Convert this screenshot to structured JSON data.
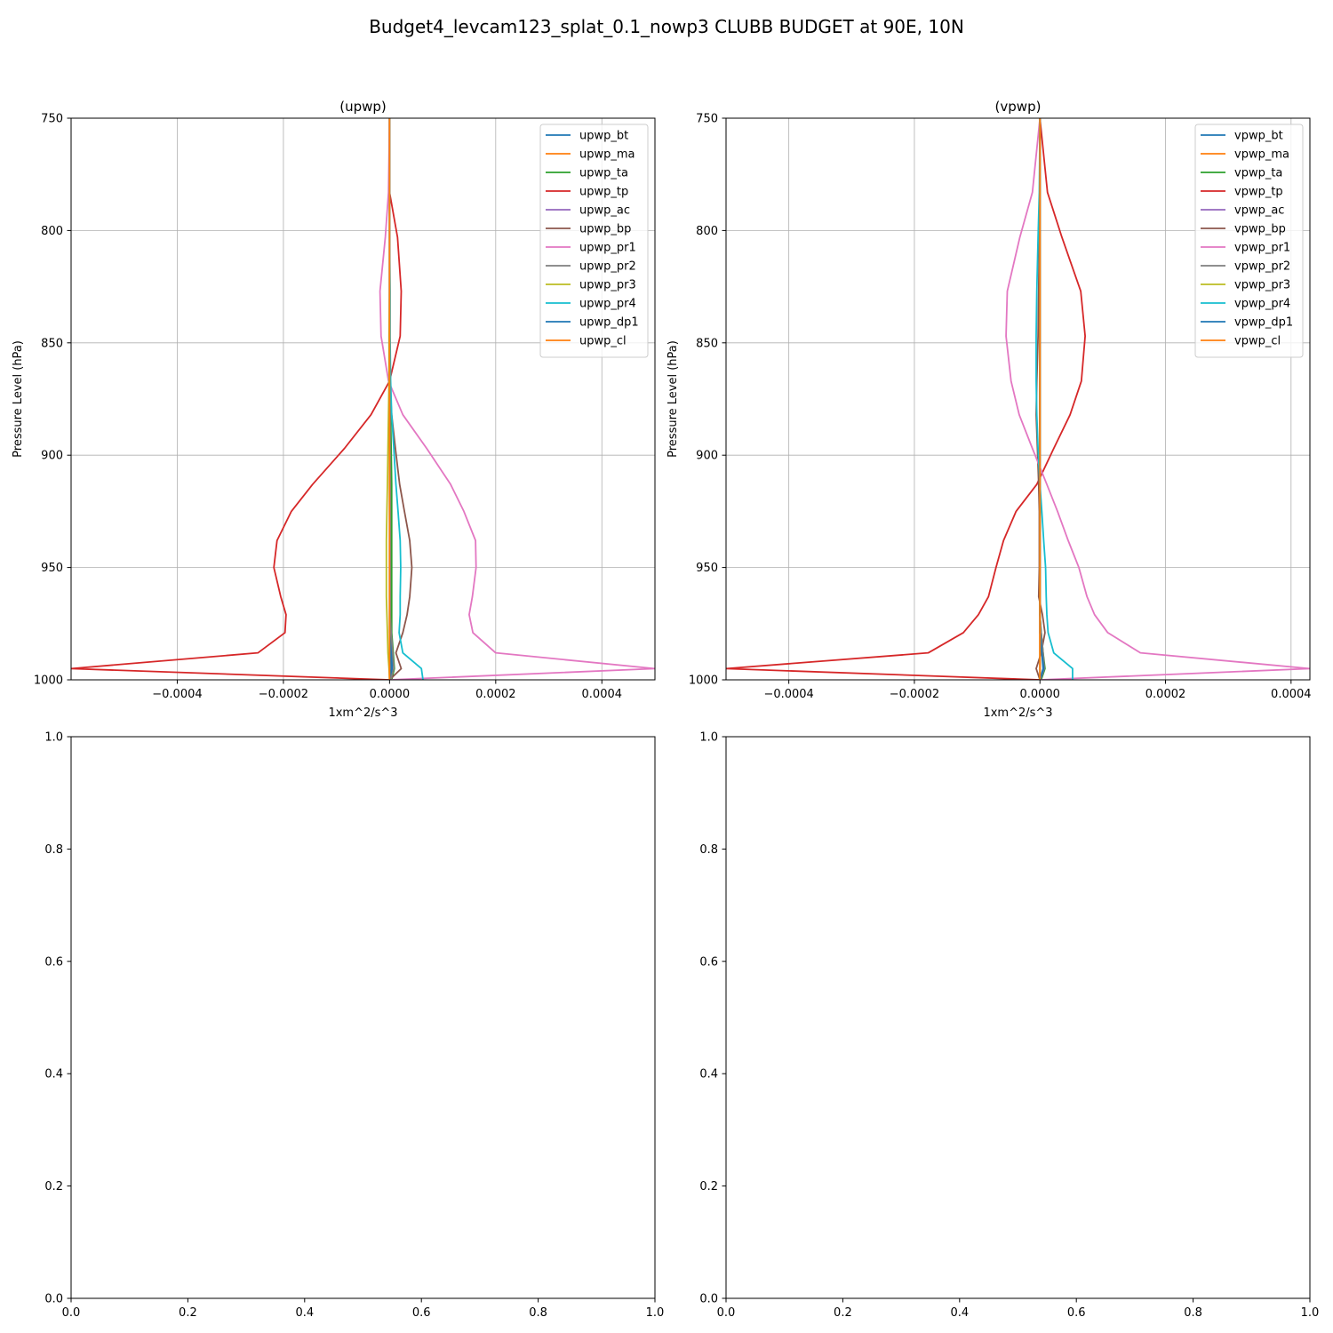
{
  "suptitle": "Budget4_levcam123_splat_0.1_nowp3 CLUBB BUDGET at 90E, 10N",
  "chart_data": [
    {
      "type": "line",
      "title": "(upwp)",
      "xlabel": "1xm^2/s^3",
      "ylabel": "Pressure Level (hPa)",
      "xlim": [
        -0.0006,
        0.0005
      ],
      "ylim": [
        1000,
        750
      ],
      "y_inverted": true,
      "grid": true,
      "legend": "upper right",
      "xticks": [
        -0.0004,
        -0.0002,
        0.0,
        0.0002,
        0.0004
      ],
      "xtick_labels": [
        "−0.0004",
        "−0.0002",
        "0.0000",
        "0.0002",
        "0.0004"
      ],
      "yticks": [
        750,
        800,
        850,
        900,
        950,
        1000
      ],
      "ytick_labels": [
        "750",
        "800",
        "850",
        "900",
        "950",
        "1000"
      ],
      "levels": [
        750,
        783,
        803,
        827,
        847,
        867,
        882,
        897,
        913,
        925,
        938,
        950,
        963,
        971,
        979,
        988,
        995,
        1000
      ],
      "series": [
        {
          "name": "upwp_bt",
          "color": "#1f77b4",
          "values": [
            0,
            0,
            0,
            0,
            0,
            0,
            1e-06,
            1e-06,
            1e-06,
            1e-06,
            1e-06,
            1e-06,
            1e-06,
            1e-06,
            2e-06,
            4e-06,
            5e-06,
            0
          ]
        },
        {
          "name": "upwp_ma",
          "color": "#ff7f0e",
          "values": [
            0,
            0,
            0,
            0,
            0,
            0,
            0,
            0,
            0,
            0,
            0,
            0,
            0,
            0,
            0,
            0,
            0,
            0
          ]
        },
        {
          "name": "upwp_ta",
          "color": "#2ca02c",
          "values": [
            0,
            0,
            0,
            0,
            0,
            0,
            2e-06,
            3e-06,
            4e-06,
            4e-06,
            4e-06,
            4e-06,
            4e-06,
            4e-06,
            4e-06,
            7e-06,
            9e-06,
            4e-06
          ]
        },
        {
          "name": "upwp_tp",
          "color": "#d62728",
          "values": [
            0,
            0,
            1.5e-05,
            2.2e-05,
            2e-05,
            0,
            -3.5e-05,
            -8.5e-05,
            -0.000145,
            -0.000185,
            -0.000212,
            -0.000218,
            -0.000205,
            -0.000195,
            -0.000197,
            -0.000248,
            -0.0006,
            0
          ]
        },
        {
          "name": "upwp_ac",
          "color": "#9467bd",
          "values": [
            0,
            0,
            0,
            0,
            0,
            0,
            0,
            0,
            0,
            0,
            0,
            0,
            0,
            0,
            0,
            0,
            0,
            0
          ]
        },
        {
          "name": "upwp_bp",
          "color": "#8c564b",
          "values": [
            0,
            0,
            0,
            0,
            0,
            0,
            4e-06,
            1.1e-05,
            1.9e-05,
            2.8e-05,
            3.8e-05,
            4.2e-05,
            3.8e-05,
            3.3e-05,
            2.5e-05,
            1.2e-05,
            2.2e-05,
            0
          ]
        },
        {
          "name": "upwp_pr1",
          "color": "#e377c2",
          "values": [
            0,
            -2e-06,
            -8e-06,
            -1.8e-05,
            -1.6e-05,
            -2e-06,
            2.5e-05,
            7e-05,
            0.000115,
            0.00014,
            0.000162,
            0.000163,
            0.000156,
            0.00015,
            0.000157,
            0.0002,
            0.0005,
            0
          ]
        },
        {
          "name": "upwp_pr2",
          "color": "#7f7f7f",
          "values": [
            0,
            0,
            0,
            0,
            0,
            0,
            1e-06,
            1e-06,
            1e-06,
            1e-06,
            1e-06,
            1e-06,
            1e-06,
            1e-06,
            3e-06,
            6e-06,
            8e-06,
            2e-06
          ]
        },
        {
          "name": "upwp_pr3",
          "color": "#bcbd22",
          "values": [
            0,
            0,
            0,
            0,
            -1e-06,
            -1e-06,
            -2e-06,
            -3e-06,
            -4e-06,
            -5e-06,
            -6e-06,
            -6e-06,
            -6e-06,
            -5e-06,
            -4e-06,
            -3e-06,
            -1e-06,
            0
          ]
        },
        {
          "name": "upwp_pr4",
          "color": "#17becf",
          "values": [
            0,
            0,
            0,
            1e-06,
            1e-06,
            2e-06,
            4e-06,
            8e-06,
            1.2e-05,
            1.6e-05,
            2e-05,
            2.1e-05,
            2e-05,
            2e-05,
            1.8e-05,
            2.5e-05,
            6e-05,
            6.3e-05
          ]
        },
        {
          "name": "upwp_dp1",
          "color": "#1f77b4",
          "values": [
            0,
            0,
            0,
            0,
            0,
            0,
            0,
            0,
            0,
            0,
            0,
            0,
            0,
            0,
            0,
            2e-06,
            3e-06,
            0
          ]
        },
        {
          "name": "upwp_cl",
          "color": "#ff7f0e",
          "values": [
            0,
            0,
            0,
            0,
            0,
            0,
            0,
            0,
            0,
            0,
            0,
            0,
            0,
            0,
            0,
            0,
            0,
            0
          ]
        }
      ]
    },
    {
      "type": "line",
      "title": "(vpwp)",
      "xlabel": "1xm^2/s^3",
      "ylabel": "Pressure Level (hPa)",
      "xlim": [
        -0.0005,
        0.00043
      ],
      "ylim": [
        1000,
        750
      ],
      "y_inverted": true,
      "grid": true,
      "legend": "upper right",
      "xticks": [
        -0.0004,
        -0.0002,
        0.0,
        0.0002,
        0.0004
      ],
      "xtick_labels": [
        "−0.0004",
        "−0.0002",
        "0.0000",
        "0.0002",
        "0.0004"
      ],
      "yticks": [
        750,
        800,
        850,
        900,
        950,
        1000
      ],
      "ytick_labels": [
        "750",
        "800",
        "850",
        "900",
        "950",
        "1000"
      ],
      "levels": [
        750,
        783,
        803,
        827,
        847,
        867,
        882,
        897,
        913,
        925,
        938,
        950,
        963,
        971,
        979,
        988,
        995,
        1000
      ],
      "series": [
        {
          "name": "vpwp_bt",
          "color": "#1f77b4",
          "values": [
            0,
            0,
            0,
            0,
            0,
            0,
            0,
            0,
            0,
            0,
            0,
            0,
            0,
            0,
            1e-06,
            3e-06,
            5e-06,
            0
          ]
        },
        {
          "name": "vpwp_ma",
          "color": "#ff7f0e",
          "values": [
            0,
            0,
            0,
            0,
            0,
            0,
            0,
            0,
            0,
            0,
            0,
            0,
            0,
            0,
            0,
            0,
            0,
            0
          ]
        },
        {
          "name": "vpwp_ta",
          "color": "#2ca02c",
          "values": [
            0,
            0,
            0,
            0,
            0,
            0,
            0,
            0,
            0,
            0,
            0,
            0,
            0,
            0,
            2e-06,
            5e-06,
            8e-06,
            2e-06
          ]
        },
        {
          "name": "vpwp_tp",
          "color": "#d62728",
          "values": [
            0,
            1.2e-05,
            3.5e-05,
            6.5e-05,
            7.2e-05,
            6.6e-05,
            4.8e-05,
            2.2e-05,
            -5e-06,
            -3.8e-05,
            -5.8e-05,
            -7e-05,
            -8.2e-05,
            -9.8e-05,
            -0.000122,
            -0.000178,
            -0.0005,
            0
          ]
        },
        {
          "name": "vpwp_ac",
          "color": "#9467bd",
          "values": [
            0,
            0,
            0,
            0,
            0,
            0,
            0,
            0,
            0,
            0,
            0,
            0,
            0,
            0,
            0,
            0,
            0,
            0
          ]
        },
        {
          "name": "vpwp_bp",
          "color": "#8c564b",
          "values": [
            0,
            0,
            -1e-06,
            -2e-06,
            -3e-06,
            -5e-06,
            -6e-06,
            -4e-06,
            -2e-06,
            -1e-06,
            -1e-06,
            -1e-06,
            -2e-06,
            4e-06,
            8e-06,
            2e-06,
            -6e-06,
            0
          ]
        },
        {
          "name": "vpwp_pr1",
          "color": "#e377c2",
          "values": [
            0,
            -1.2e-05,
            -3.2e-05,
            -5.2e-05,
            -5.4e-05,
            -4.6e-05,
            -3.3e-05,
            -1.2e-05,
            1.1e-05,
            2.8e-05,
            4.5e-05,
            6.2e-05,
            7.5e-05,
            8.7e-05,
            0.000108,
            0.00016,
            0.00043,
            0
          ]
        },
        {
          "name": "vpwp_pr2",
          "color": "#7f7f7f",
          "values": [
            0,
            0,
            0,
            0,
            0,
            0,
            0,
            0,
            0,
            0,
            0,
            0,
            0,
            0,
            2e-06,
            5e-06,
            7e-06,
            1e-06
          ]
        },
        {
          "name": "vpwp_pr3",
          "color": "#bcbd22",
          "values": [
            0,
            0,
            0,
            0,
            0,
            0,
            0,
            0,
            0,
            0,
            0,
            0,
            0,
            0,
            0,
            0,
            0,
            0
          ]
        },
        {
          "name": "vpwp_pr4",
          "color": "#17becf",
          "values": [
            0,
            -1e-06,
            -3e-06,
            -5e-06,
            -6e-06,
            -6e-06,
            -5e-06,
            -3e-06,
            0,
            3e-06,
            6e-06,
            9e-06,
            1e-05,
            1.1e-05,
            1.3e-05,
            2.2e-05,
            5.2e-05,
            5.2e-05
          ]
        },
        {
          "name": "vpwp_dp1",
          "color": "#1f77b4",
          "values": [
            0,
            0,
            0,
            0,
            0,
            0,
            0,
            0,
            0,
            0,
            0,
            0,
            0,
            0,
            0,
            3e-06,
            6e-06,
            0
          ]
        },
        {
          "name": "vpwp_cl",
          "color": "#ff7f0e",
          "values": [
            0,
            0,
            0,
            0,
            0,
            0,
            0,
            0,
            0,
            0,
            0,
            0,
            0,
            0,
            0,
            0,
            0,
            0
          ]
        }
      ]
    },
    {
      "type": "line",
      "title": "",
      "xlim": [
        0,
        1
      ],
      "ylim": [
        0,
        1
      ],
      "grid": false,
      "xticks": [
        0,
        0.2,
        0.4,
        0.6,
        0.8,
        1.0
      ],
      "xtick_labels": [
        "0.0",
        "0.2",
        "0.4",
        "0.6",
        "0.8",
        "1.0"
      ],
      "yticks": [
        0,
        0.2,
        0.4,
        0.6,
        0.8,
        1.0
      ],
      "ytick_labels": [
        "0.0",
        "0.2",
        "0.4",
        "0.6",
        "0.8",
        "1.0"
      ],
      "series": []
    },
    {
      "type": "line",
      "title": "",
      "xlim": [
        0,
        1
      ],
      "ylim": [
        0,
        1
      ],
      "grid": false,
      "xticks": [
        0,
        0.2,
        0.4,
        0.6,
        0.8,
        1.0
      ],
      "xtick_labels": [
        "0.0",
        "0.2",
        "0.4",
        "0.6",
        "0.8",
        "1.0"
      ],
      "yticks": [
        0,
        0.2,
        0.4,
        0.6,
        0.8,
        1.0
      ],
      "ytick_labels": [
        "0.0",
        "0.2",
        "0.4",
        "0.6",
        "0.8",
        "1.0"
      ],
      "series": []
    }
  ]
}
